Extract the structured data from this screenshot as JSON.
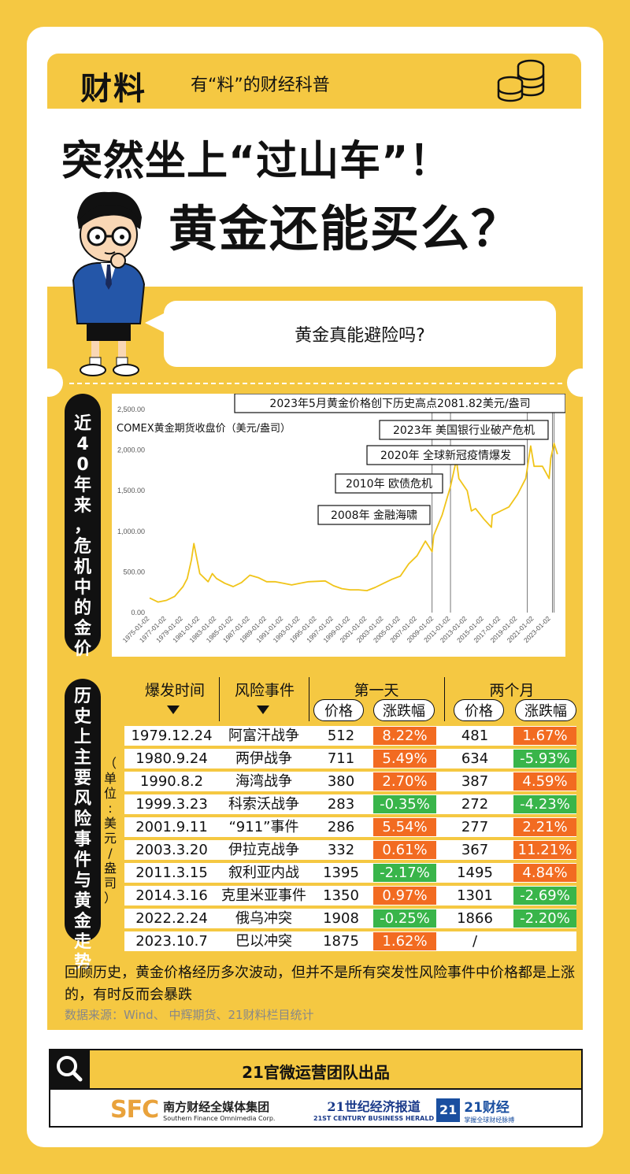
{
  "header": {
    "brand": "财料",
    "tagline": "有“料”的财经科普"
  },
  "title": {
    "line1": "突然坐上“过山车”！",
    "line2": "黄金还能买么？"
  },
  "bubble": {
    "text": "黄金真能避险吗?"
  },
  "section1_label": [
    "近",
    "4",
    "0",
    "年",
    "来",
    "，",
    "危",
    "机",
    "中",
    "的",
    "金",
    "价"
  ],
  "section2_label": [
    "历",
    "史",
    "上",
    "主",
    "要",
    "风",
    "险",
    "事",
    "件",
    "与",
    "黄",
    "金",
    "走",
    "势"
  ],
  "unit_note": [
    "（",
    "单",
    "位",
    ":",
    "美",
    "元",
    "/",
    "盎",
    "司",
    "）"
  ],
  "chart_data": {
    "type": "line",
    "title": "COMEX黄金期货收盘价（美元/盎司）",
    "ylim": [
      0,
      2500
    ],
    "yticks": [
      "0.00",
      "500.00",
      "1,000.00",
      "1,500.00",
      "2,000.00",
      "2,500.00"
    ],
    "xticks": [
      "1975-01-02",
      "1977-01-02",
      "1979-01-02",
      "1981-01-02",
      "1983-01-02",
      "1985-01-02",
      "1987-01-02",
      "1989-01-02",
      "1991-01-02",
      "1993-01-02",
      "1995-01-02",
      "1997-01-02",
      "1999-01-02",
      "2001-01-02",
      "2003-01-02",
      "2005-01-02",
      "2007-01-02",
      "2009-01-02",
      "2011-01-02",
      "2013-01-02",
      "2015-01-02",
      "2017-01-02",
      "2019-01-02",
      "2021-01-02",
      "2023-01-02"
    ],
    "series": [
      {
        "x": [
          1975,
          1976,
          1977,
          1978,
          1979,
          1979.5,
          1980,
          1980.3,
          1981,
          1982,
          1982.5,
          1983,
          1984,
          1985,
          1986,
          1987,
          1988,
          1989,
          1990,
          1991,
          1992,
          1993,
          1994,
          1995,
          1996,
          1997,
          1998,
          1999,
          2000,
          2001,
          2002,
          2003,
          2004,
          2005,
          2006,
          2007,
          2008,
          2008.8,
          2009,
          2010,
          2011,
          2011.7,
          2012,
          2013,
          2013.5,
          2014,
          2015,
          2015.9,
          2016,
          2017,
          2018,
          2019,
          2020,
          2020.6,
          2021,
          2022,
          2022.8,
          2023,
          2023.4,
          2023.8
        ],
        "y": [
          180,
          130,
          150,
          200,
          320,
          420,
          650,
          850,
          480,
          380,
          480,
          420,
          360,
          320,
          370,
          460,
          430,
          380,
          380,
          360,
          340,
          360,
          380,
          385,
          390,
          330,
          295,
          280,
          280,
          270,
          310,
          360,
          410,
          450,
          600,
          700,
          880,
          750,
          950,
          1200,
          1550,
          1880,
          1650,
          1500,
          1250,
          1280,
          1150,
          1050,
          1200,
          1250,
          1300,
          1450,
          1650,
          2050,
          1800,
          1800,
          1650,
          1900,
          2081.82,
          1950
        ]
      }
    ],
    "annotations": [
      {
        "x": 2008.8,
        "text": "2008年 金融海啸"
      },
      {
        "x": 2011.0,
        "text": "2010年 欧债危机"
      },
      {
        "x": 2020.2,
        "text": "2020年 全球新冠疫情爆发"
      },
      {
        "x": 2023.2,
        "text": "2023年 美国银行业破产危机"
      },
      {
        "x": 2023.4,
        "text": "2023年5月黄金价格创下历史高点2081.82美元/盎司"
      }
    ]
  },
  "table": {
    "headers": {
      "time": "爆发时间",
      "event": "风险事件",
      "day1": "第一天",
      "month2": "两个月",
      "price": "价格",
      "change": "涨跌幅"
    },
    "rows": [
      {
        "date": "1979.12.24",
        "event": "阿富汗战争",
        "p1": "512",
        "c1": "8.22%",
        "c1d": "up",
        "p2": "481",
        "c2": "1.67%",
        "c2d": "up"
      },
      {
        "date": "1980.9.24",
        "event": "两伊战争",
        "p1": "711",
        "c1": "5.49%",
        "c1d": "up",
        "p2": "634",
        "c2": "-5.93%",
        "c2d": "down"
      },
      {
        "date": "1990.8.2",
        "event": "海湾战争",
        "p1": "380",
        "c1": "2.70%",
        "c1d": "up",
        "p2": "387",
        "c2": "4.59%",
        "c2d": "up"
      },
      {
        "date": "1999.3.23",
        "event": "科索沃战争",
        "p1": "283",
        "c1": "-0.35%",
        "c1d": "down",
        "p2": "272",
        "c2": "-4.23%",
        "c2d": "down"
      },
      {
        "date": "2001.9.11",
        "event": "“911”事件",
        "p1": "286",
        "c1": "5.54%",
        "c1d": "up",
        "p2": "277",
        "c2": "2.21%",
        "c2d": "up"
      },
      {
        "date": "2003.3.20",
        "event": "伊拉克战争",
        "p1": "332",
        "c1": "0.61%",
        "c1d": "up",
        "p2": "367",
        "c2": "11.21%",
        "c2d": "up"
      },
      {
        "date": "2011.3.15",
        "event": "叙利亚内战",
        "p1": "1395",
        "c1": "-2.17%",
        "c1d": "down",
        "p2": "1495",
        "c2": "4.84%",
        "c2d": "up"
      },
      {
        "date": "2014.3.16",
        "event": "克里米亚事件",
        "p1": "1350",
        "c1": "0.97%",
        "c1d": "up",
        "p2": "1301",
        "c2": "-2.69%",
        "c2d": "down"
      },
      {
        "date": "2022.2.24",
        "event": "俄乌冲突",
        "p1": "1908",
        "c1": "-0.25%",
        "c1d": "down",
        "p2": "1866",
        "c2": "-2.20%",
        "c2d": "down"
      },
      {
        "date": "2023.10.7",
        "event": "巴以冲突",
        "p1": "1875",
        "c1": "1.62%",
        "c1d": "up",
        "p2": "/",
        "c2": "",
        "c2d": "none"
      }
    ]
  },
  "summary": "回顾历史，黄金价格经历多次波动，但并不是所有突发性风险事件中价格都是上涨的，有时反而会暴跌",
  "source": "数据来源：Wind、 中辉期货、21财料栏目统计",
  "footer": {
    "title": "21官微运营团队出品",
    "sfc_mark": "SFC",
    "sfc_cn": "南方财经全媒体集团",
    "sfc_en": "Southern Finance Omnimedia Corp.",
    "herald_cn": "21世纪经济报道",
    "herald_en": "21ST CENTURY BUSINESS HERALD",
    "cj_badge": "21",
    "cj_cn": "21财经",
    "cj_sub": "掌握全球财经脉搏"
  },
  "colors": {
    "yellow": "#f5c842",
    "up": "#f26b21",
    "down": "#39b54a",
    "line": "#f0c419"
  }
}
